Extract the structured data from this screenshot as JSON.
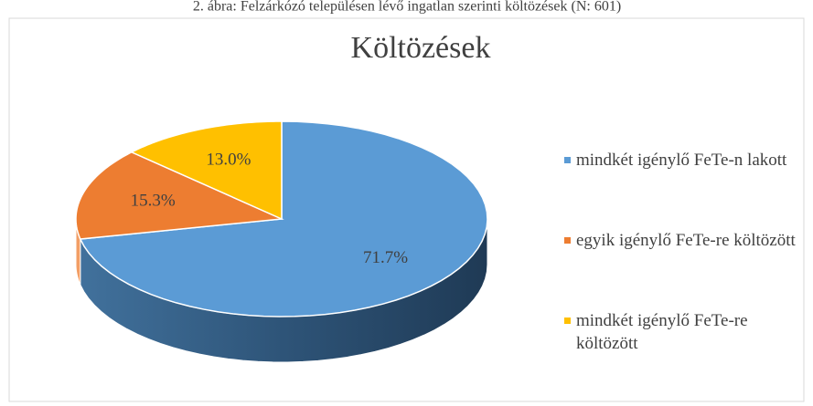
{
  "chart_data": {
    "type": "pie3d",
    "caption": "2. ábra: Felzárkózó településen lévő ingatlan szerinti költözések (N: 601)",
    "title": "Költözések",
    "categories": [
      "mindkét igénylő FeTe-n lakott",
      "egyik igénylő FeTe-re költözött",
      "mindkét igénylő FeTe-re költözött"
    ],
    "values": [
      71.7,
      15.3,
      13.0
    ],
    "value_labels": [
      "71.7%",
      "15.3%",
      "13.0%"
    ],
    "colors": [
      "#5b9bd5",
      "#ed7d31",
      "#ffc000"
    ],
    "legend": "right"
  }
}
